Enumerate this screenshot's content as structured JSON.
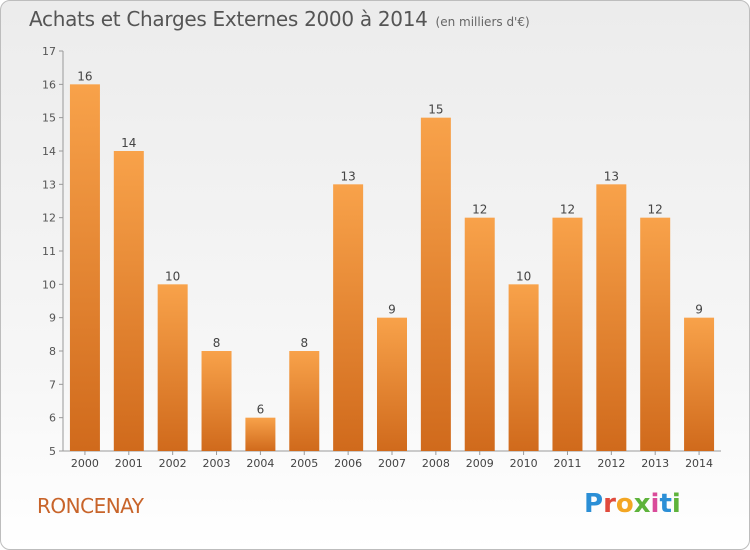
{
  "header": {
    "title": "Achats et Charges Externes 2000 à 2014",
    "subtitle": "(en milliers d'€)"
  },
  "footer": {
    "place": "RONCENAY",
    "logo": [
      "P",
      "r",
      "o",
      "x",
      "i",
      "t",
      "i"
    ]
  },
  "colors": {
    "bar_top": "#f8a24a",
    "bar_bottom": "#d06a1c",
    "axis": "#999999",
    "place_text": "#c8642a"
  },
  "chart_data": {
    "type": "bar",
    "title": "Achats et Charges Externes 2000 à 2014",
    "subtitle": "(en milliers d'€)",
    "categories": [
      "2000",
      "2001",
      "2002",
      "2003",
      "2004",
      "2005",
      "2006",
      "2007",
      "2008",
      "2009",
      "2010",
      "2011",
      "2012",
      "2013",
      "2014"
    ],
    "values": [
      16,
      14,
      10,
      8,
      6,
      8,
      13,
      9,
      15,
      12,
      10,
      12,
      13,
      12,
      9
    ],
    "ylim": [
      5,
      17
    ],
    "yticks": [
      5,
      6,
      7,
      8,
      9,
      10,
      11,
      12,
      13,
      14,
      15,
      16,
      17
    ],
    "grid": false,
    "data_labels": true
  }
}
